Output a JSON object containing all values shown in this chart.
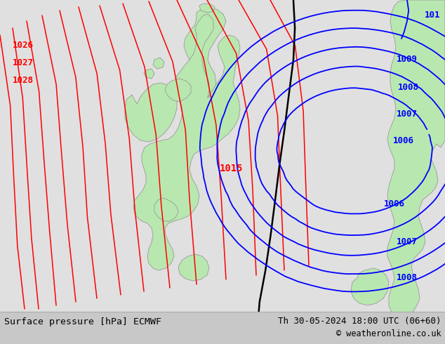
{
  "title_left": "Surface pressure [hPa] ECMWF",
  "title_right": "Th 30-05-2024 18:00 UTC (06+60)",
  "copyright": "© weatheronline.co.uk",
  "bg_color": "#e0e0e0",
  "land_color": "#b8e8b0",
  "land_edge_color": "#999999",
  "bottom_bar_color": "#c8c8c8",
  "red_line_color": "#ff0000",
  "black_line_color": "#000000",
  "blue_line_color": "#0000ff",
  "figsize": [
    6.34,
    4.9
  ],
  "dpi": 100,
  "label_1015": "1015",
  "label_101": "101",
  "labels_red_left": [
    [
      "1028",
      18,
      115
    ],
    [
      "1027",
      18,
      90
    ],
    [
      "1026",
      18,
      65
    ]
  ],
  "labels_blue": [
    [
      "1009",
      565,
      390
    ],
    [
      "1008",
      565,
      348
    ],
    [
      "1007",
      560,
      305
    ],
    [
      "1006",
      553,
      258
    ],
    [
      "1006",
      547,
      175
    ],
    [
      "1007",
      560,
      120
    ],
    [
      "1008",
      560,
      75
    ]
  ]
}
